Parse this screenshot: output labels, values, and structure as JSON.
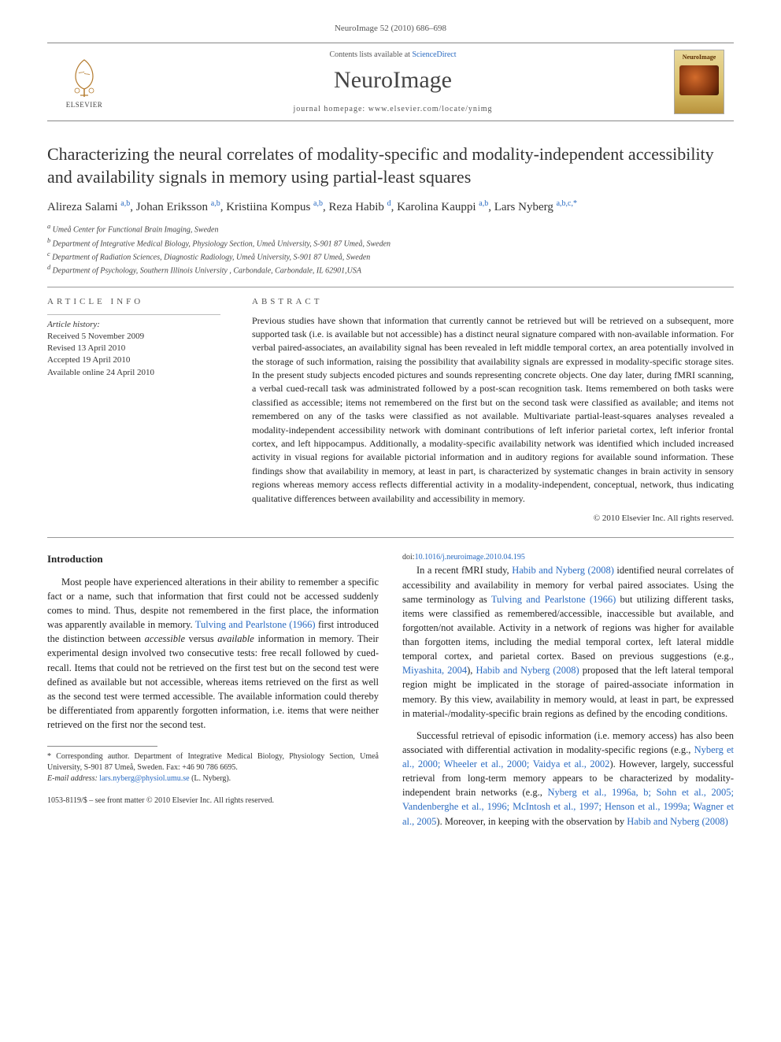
{
  "header": {
    "citation": "NeuroImage 52 (2010) 686–698",
    "contents_prefix": "Contents lists available at ",
    "contents_link": "ScienceDirect",
    "journal": "NeuroImage",
    "homepage_prefix": "journal homepage: ",
    "homepage": "www.elsevier.com/locate/ynimg",
    "publisher": "ELSEVIER",
    "cover_label": "NeuroImage"
  },
  "article": {
    "title": "Characterizing the neural correlates of modality-specific and modality-independent accessibility and availability signals in memory using partial-least squares",
    "authors_prefix": "",
    "authors": [
      {
        "name": "Alireza Salami",
        "sup": "a,b"
      },
      {
        "name": "Johan Eriksson",
        "sup": "a,b"
      },
      {
        "name": "Kristiina Kompus",
        "sup": "a,b"
      },
      {
        "name": "Reza Habib",
        "sup": "d"
      },
      {
        "name": "Karolina Kauppi",
        "sup": "a,b"
      },
      {
        "name": "Lars Nyberg",
        "sup": "a,b,c,*"
      }
    ],
    "affiliations": [
      {
        "sup": "a",
        "text": "Umeå Center for Functional Brain Imaging, Sweden"
      },
      {
        "sup": "b",
        "text": "Department of Integrative Medical Biology, Physiology Section, Umeå University, S-901 87 Umeå, Sweden"
      },
      {
        "sup": "c",
        "text": "Department of Radiation Sciences, Diagnostic Radiology, Umeå University, S-901 87 Umeå, Sweden"
      },
      {
        "sup": "d",
        "text": "Department of Psychology, Southern Illinois University , Carbondale, Carbondale, IL 62901,USA"
      }
    ]
  },
  "info": {
    "heading": "ARTICLE INFO",
    "history_label": "Article history:",
    "received": "Received 5 November 2009",
    "revised": "Revised 13 April 2010",
    "accepted": "Accepted 19 April 2010",
    "online": "Available online 24 April 2010"
  },
  "abstract": {
    "heading": "ABSTRACT",
    "text": "Previous studies have shown that information that currently cannot be retrieved but will be retrieved on a subsequent, more supported task (i.e. is available but not accessible) has a distinct neural signature compared with non-available information. For verbal paired-associates, an availability signal has been revealed in left middle temporal cortex, an area potentially involved in the storage of such information, raising the possibility that availability signals are expressed in modality-specific storage sites. In the present study subjects encoded pictures and sounds representing concrete objects. One day later, during fMRI scanning, a verbal cued-recall task was administrated followed by a post-scan recognition task. Items remembered on both tasks were classified as accessible; items not remembered on the first but on the second task were classified as available; and items not remembered on any of the tasks were classified as not available. Multivariate partial-least-squares analyses revealed a modality-independent accessibility network with dominant contributions of left inferior parietal cortex, left inferior frontal cortex, and left hippocampus. Additionally, a modality-specific availability network was identified which included increased activity in visual regions for available pictorial information and in auditory regions for available sound information. These findings show that availability in memory, at least in part, is characterized by systematic changes in brain activity in sensory regions whereas memory access reflects differential activity in a modality-independent, conceptual, network, thus indicating qualitative differences between availability and accessibility in memory.",
    "copyright": "© 2010 Elsevier Inc. All rights reserved."
  },
  "intro": {
    "heading": "Introduction",
    "p1_a": "Most people have experienced alterations in their ability to remember a specific fact or a name, such that information that first could not be accessed suddenly comes to mind. Thus, despite not remembered in the first place, the information was apparently available in memory. ",
    "p1_link1": "Tulving and Pearlstone (1966)",
    "p1_b": " first introduced the distinction between ",
    "p1_i1": "accessible",
    "p1_c": " versus ",
    "p1_i2": "available",
    "p1_d": " information in memory. Their experimental design involved two consecutive tests: free recall followed by cued-recall. Items that could not be retrieved on the first test but on the second test were defined as available but not accessible, whereas items retrieved on the first as well as the second test were termed accessible. The available information could thereby be differentiated from apparently forgotten information, i.e. items that were neither retrieved on the first nor the second test.",
    "p2_a": "In a recent fMRI study, ",
    "p2_link1": "Habib and Nyberg (2008)",
    "p2_b": " identified neural correlates of accessibility and availability in memory for verbal paired associates. Using the same terminology as ",
    "p2_link2": "Tulving and Pearlstone (1966)",
    "p2_c": " but utilizing different tasks, items were classified as remembered/accessible, inaccessible but available, and forgotten/not available. Activity in a network of regions was higher for available than forgotten items, including the medial temporal cortex, left lateral middle temporal cortex, and parietal cortex. Based on previous suggestions (e.g., ",
    "p2_link3": "Miyashita, 2004",
    "p2_d": "), ",
    "p2_link4": "Habib and Nyberg (2008)",
    "p2_e": " proposed that the left lateral temporal region might be implicated in the storage of paired-associate information in memory. By this view, availability in memory would, at least in part, be expressed in material-/modality-specific brain regions as defined by the encoding conditions.",
    "p3_a": "Successful retrieval of episodic information (i.e. memory access) has also been associated with differential activation in modality-specific regions (e.g., ",
    "p3_link1": "Nyberg et al., 2000; Wheeler et al., 2000; Vaidya et al., 2002",
    "p3_b": "). However, largely, successful retrieval from long-term memory appears to be characterized by modality-independent brain networks (e.g., ",
    "p3_link2": "Nyberg et al., 1996a, b; Sohn et al., 2005; Vandenberghe et al., 1996; McIntosh et al., 1997; Henson et al., 1999a; Wagner et al., 2005",
    "p3_c": "). Moreover, in keeping with the observation by ",
    "p3_link3": "Habib and Nyberg (2008)"
  },
  "footnote": {
    "corr": "* Corresponding author. Department of Integrative Medical Biology, Physiology Section, Umeå University, S-901 87 Umeå, Sweden. Fax: +46 90 786 6695.",
    "email_label": "E-mail address: ",
    "email": "lars.nyberg@physiol.umu.se",
    "email_suffix": " (L. Nyberg)."
  },
  "footer": {
    "issn": "1053-8119/$ – see front matter © 2010 Elsevier Inc. All rights reserved.",
    "doi_prefix": "doi:",
    "doi": "10.1016/j.neuroimage.2010.04.195"
  },
  "style": {
    "link_color": "#2a6bc2",
    "text_color": "#333333",
    "rule_color": "#999999",
    "body_fontsize": 12.5,
    "title_fontsize": 22,
    "journal_fontsize": 30
  }
}
